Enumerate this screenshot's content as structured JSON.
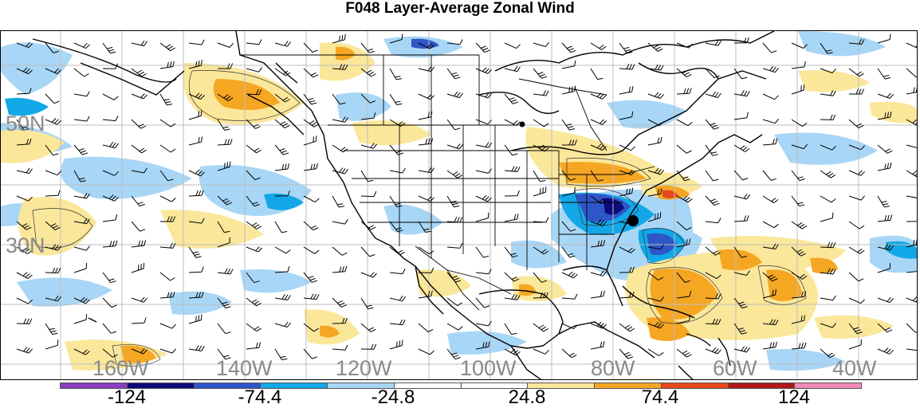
{
  "title": "F048 Layer-Average Zonal Wind",
  "map": {
    "lat_labels": [
      "50N",
      "30N"
    ],
    "lon_labels": [
      "160W",
      "140W",
      "120W",
      "100W",
      "80W",
      "60W",
      "40W"
    ],
    "label_color": "#8a8a8a"
  },
  "colorbar": {
    "colors": [
      "#8b3fc0",
      "#0b0b7a",
      "#2f56c8",
      "#12a8e8",
      "#a8d6f6",
      "#ffffff",
      "#ffffff",
      "#fbe79a",
      "#f5a623",
      "#e8481c",
      "#b0181c",
      "#f28ab6"
    ],
    "tick_labels": [
      "-124",
      "-74.4",
      "-24.8",
      "24.8",
      "74.4",
      "124"
    ]
  }
}
